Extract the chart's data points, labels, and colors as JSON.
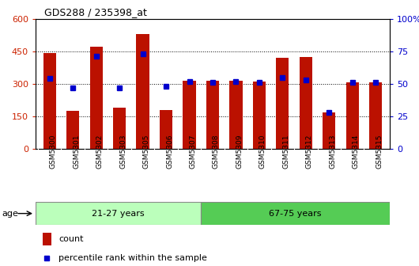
{
  "title": "GDS288 / 235398_at",
  "samples": [
    "GSM5300",
    "GSM5301",
    "GSM5302",
    "GSM5303",
    "GSM5305",
    "GSM5306",
    "GSM5307",
    "GSM5308",
    "GSM5309",
    "GSM5310",
    "GSM5311",
    "GSM5312",
    "GSM5313",
    "GSM5314",
    "GSM5315"
  ],
  "counts": [
    440,
    175,
    470,
    190,
    530,
    180,
    315,
    315,
    315,
    310,
    420,
    425,
    170,
    305,
    305
  ],
  "percentile_ranks": [
    54,
    47,
    71,
    47,
    73,
    48,
    52,
    51,
    52,
    51,
    55,
    53,
    28,
    51,
    51
  ],
  "groups": [
    {
      "label": "21-27 years",
      "start": 0,
      "end": 7,
      "color": "#bbffbb"
    },
    {
      "label": "67-75 years",
      "start": 7,
      "end": 15,
      "color": "#55cc55"
    }
  ],
  "bar_color": "#bb1100",
  "marker_color": "#0000cc",
  "ylim_left": [
    0,
    600
  ],
  "ylim_right": [
    0,
    100
  ],
  "yticks_left": [
    0,
    150,
    300,
    450,
    600
  ],
  "yticks_right": [
    0,
    25,
    50,
    75,
    100
  ],
  "left_color": "#cc2200",
  "right_color": "#0000cc",
  "bg_color": "#ffffff",
  "legend_count_label": "count",
  "legend_percentile_label": "percentile rank within the sample",
  "age_label": "age",
  "group_border_color": "#888888",
  "xticklabel_bg": "#dddddd"
}
